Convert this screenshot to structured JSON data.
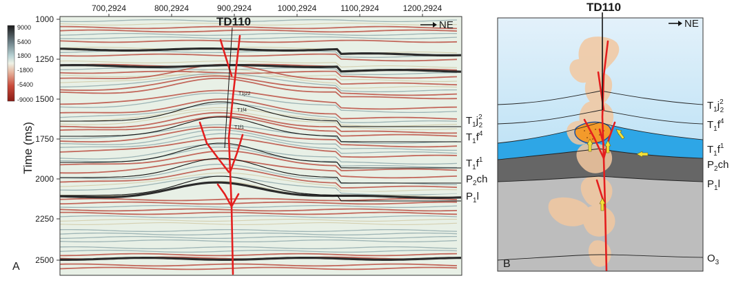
{
  "panelA": {
    "label": "A",
    "well": "TD110",
    "direction": "NE",
    "y_axis_title": "Time (ms)",
    "x_ticks": [
      "700,2924",
      "800,2924",
      "900,2924",
      "1000,2924",
      "1100,2924",
      "1200,2924"
    ],
    "y_ticks": [
      "1000",
      "1250",
      "1500",
      "1750",
      "2000",
      "2250",
      "2500"
    ],
    "colorbar_ticks": [
      "9000",
      "5400",
      "1800",
      "-1800",
      "-5400",
      "-9000"
    ],
    "colors": {
      "positive": "#2b2b2b",
      "near_zero": "#e8f0e6",
      "negative": "#b53a2c",
      "fault": "#e41e1e"
    },
    "small_labels": [
      "T1j22",
      "T1f4",
      "T1f1"
    ],
    "horizons": [
      {
        "base": "T",
        "sub1": "1",
        "mid": "j",
        "sup": "2",
        "sub2": "2"
      },
      {
        "base": "T",
        "sub1": "1",
        "mid": "f",
        "sup": "4"
      },
      {
        "base": "T",
        "sub1": "1",
        "mid": "f",
        "sup": "1"
      },
      {
        "base": "P",
        "sub1": "2",
        "mid": "ch"
      },
      {
        "base": "P",
        "sub1": "1",
        "mid": "l"
      }
    ]
  },
  "panelB": {
    "label": "B",
    "well": "TD110",
    "direction": "NE",
    "colors": {
      "sky_top": "#d7ebf8",
      "sky_bottom": "#9fd6f2",
      "aquifer": "#2ea6e6",
      "permian_dark": "#666666",
      "permian_light": "#bdbdbd",
      "gas": "#f3c8a0",
      "reservoir": "#f39a2b",
      "arrow": "#f5e23a",
      "fault": "#e41e1e"
    },
    "horizons": [
      {
        "base": "T",
        "sub1": "1",
        "mid": "j",
        "sup": "2",
        "sub2": "2"
      },
      {
        "base": "T",
        "sub1": "1",
        "mid": "f",
        "sup": "4"
      },
      {
        "base": "T",
        "sub1": "1",
        "mid": "f",
        "sup": "1"
      },
      {
        "base": "P",
        "sub1": "2",
        "mid": "ch"
      },
      {
        "base": "P",
        "sub1": "1",
        "mid": "l"
      },
      {
        "base": "O",
        "sub1": "3"
      }
    ]
  }
}
